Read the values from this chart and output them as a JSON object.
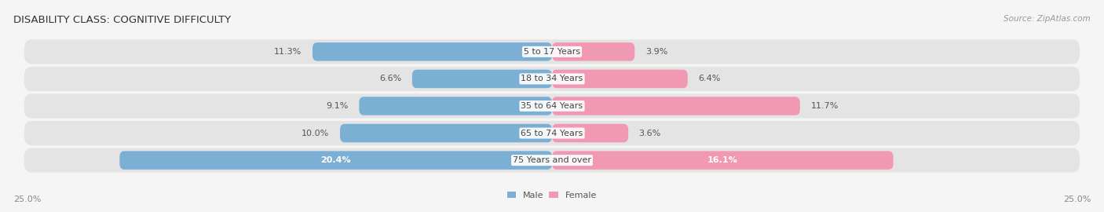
{
  "title": "DISABILITY CLASS: COGNITIVE DIFFICULTY",
  "source": "Source: ZipAtlas.com",
  "categories": [
    "5 to 17 Years",
    "18 to 34 Years",
    "35 to 64 Years",
    "65 to 74 Years",
    "75 Years and over"
  ],
  "male_values": [
    11.3,
    6.6,
    9.1,
    10.0,
    20.4
  ],
  "female_values": [
    3.9,
    6.4,
    11.7,
    3.6,
    16.1
  ],
  "male_color": "#7bafd4",
  "female_color": "#f198b2",
  "male_label": "Male",
  "female_label": "Female",
  "max_val": 25.0,
  "row_bg_color": "#e4e4e4",
  "fig_bg_color": "#f5f5f5",
  "title_fontsize": 9.5,
  "label_fontsize": 8.0,
  "value_fontsize": 8.0,
  "source_fontsize": 7.5,
  "axis_label": "25.0%"
}
